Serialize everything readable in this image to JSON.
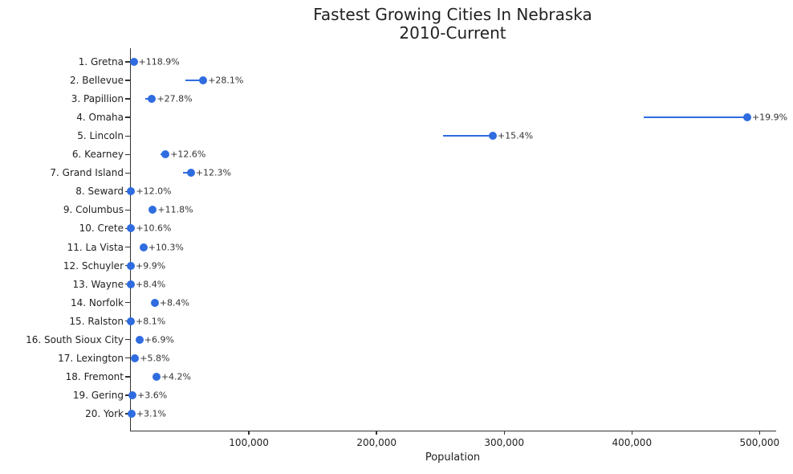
{
  "chart_data": {
    "type": "scatter",
    "style": "horizontal-lollipop-dumbbell",
    "title_line1": "Fastest Growing Cities In Nebraska",
    "title_line2": "2010-Current",
    "title": "Fastest Growing Cities In Nebraska 2010-Current",
    "xlabel": "Population",
    "ylabel": "",
    "xlim": [
      7500,
      513000
    ],
    "grid": false,
    "legend": false,
    "marker_color": "#2f6ce0",
    "line_color": "#2f6ce0",
    "axis_color": "#333333",
    "text_color": "#222222",
    "x_ticks": [
      {
        "value": 100000,
        "label": "100,000"
      },
      {
        "value": 200000,
        "label": "200,000"
      },
      {
        "value": 300000,
        "label": "300,000"
      },
      {
        "value": 400000,
        "label": "400,000"
      },
      {
        "value": 500000,
        "label": "500,000"
      }
    ],
    "points": [
      {
        "rank": 1,
        "city": "Gretna",
        "label": "1. Gretna",
        "growth_label": "+118.9%",
        "growth_pct": 118.9,
        "pop_2010_est": 4441,
        "pop_current_est": 9721
      },
      {
        "rank": 2,
        "city": "Bellevue",
        "label": "2. Bellevue",
        "growth_label": "+28.1%",
        "growth_pct": 28.1,
        "pop_2010_est": 50137,
        "pop_current_est": 64226
      },
      {
        "rank": 3,
        "city": "Papillion",
        "label": "3. Papillion",
        "growth_label": "+27.8%",
        "growth_pct": 27.8,
        "pop_2010_est": 18894,
        "pop_current_est": 24147
      },
      {
        "rank": 4,
        "city": "Omaha",
        "label": "4. Omaha",
        "growth_label": "+19.9%",
        "growth_pct": 19.9,
        "pop_2010_est": 408958,
        "pop_current_est": 490341
      },
      {
        "rank": 5,
        "city": "Lincoln",
        "label": "5. Lincoln",
        "growth_label": "+15.4%",
        "growth_pct": 15.4,
        "pop_2010_est": 252000,
        "pop_current_est": 291000
      },
      {
        "rank": 6,
        "city": "Kearney",
        "label": "6. Kearney",
        "growth_label": "+12.6%",
        "growth_pct": 12.6,
        "pop_2010_est": 30787,
        "pop_current_est": 34666
      },
      {
        "rank": 7,
        "city": "Grand Island",
        "label": "7. Grand Island",
        "growth_label": "+12.3%",
        "growth_pct": 12.3,
        "pop_2010_est": 48520,
        "pop_current_est": 54488
      },
      {
        "rank": 8,
        "city": "Seward",
        "label": "8. Seward",
        "growth_label": "+12.0%",
        "growth_pct": 12.0,
        "pop_2010_est": 6964,
        "pop_current_est": 7800
      },
      {
        "rank": 9,
        "city": "Columbus",
        "label": "9. Columbus",
        "growth_label": "+11.8%",
        "growth_pct": 11.8,
        "pop_2010_est": 22111,
        "pop_current_est": 24720
      },
      {
        "rank": 10,
        "city": "Crete",
        "label": "10. Crete",
        "growth_label": "+10.6%",
        "growth_pct": 10.6,
        "pop_2010_est": 6960,
        "pop_current_est": 7698
      },
      {
        "rank": 11,
        "city": "La Vista",
        "label": "11. La Vista",
        "growth_label": "+10.3%",
        "growth_pct": 10.3,
        "pop_2010_est": 15758,
        "pop_current_est": 17381
      },
      {
        "rank": 12,
        "city": "Schuyler",
        "label": "12. Schuyler",
        "growth_label": "+9.9%",
        "growth_pct": 9.9,
        "pop_2010_est": 6211,
        "pop_current_est": 6826
      },
      {
        "rank": 13,
        "city": "Wayne",
        "label": "13. Wayne",
        "growth_label": "+8.4%",
        "growth_pct": 8.4,
        "pop_2010_est": 5660,
        "pop_current_est": 6135
      },
      {
        "rank": 14,
        "city": "Norfolk",
        "label": "14. Norfolk",
        "growth_label": "+8.4%",
        "growth_pct": 8.4,
        "pop_2010_est": 24210,
        "pop_current_est": 26244
      },
      {
        "rank": 15,
        "city": "Ralston",
        "label": "15. Ralston",
        "growth_label": "+8.1%",
        "growth_pct": 8.1,
        "pop_2010_est": 5943,
        "pop_current_est": 6424
      },
      {
        "rank": 16,
        "city": "South Sioux City",
        "label": "16. South Sioux City",
        "growth_label": "+6.9%",
        "growth_pct": 6.9,
        "pop_2010_est": 13353,
        "pop_current_est": 14274
      },
      {
        "rank": 17,
        "city": "Lexington",
        "label": "17. Lexington",
        "growth_label": "+5.8%",
        "growth_pct": 5.8,
        "pop_2010_est": 10230,
        "pop_current_est": 10823
      },
      {
        "rank": 18,
        "city": "Fremont",
        "label": "18. Fremont",
        "growth_label": "+4.2%",
        "growth_pct": 4.2,
        "pop_2010_est": 26397,
        "pop_current_est": 27506
      },
      {
        "rank": 19,
        "city": "Gering",
        "label": "19. Gering",
        "growth_label": "+3.6%",
        "growth_pct": 3.6,
        "pop_2010_est": 8500,
        "pop_current_est": 8806
      },
      {
        "rank": 20,
        "city": "York",
        "label": "20. York",
        "growth_label": "+3.1%",
        "growth_pct": 3.1,
        "pop_2010_est": 7766,
        "pop_current_est": 8007
      }
    ]
  }
}
